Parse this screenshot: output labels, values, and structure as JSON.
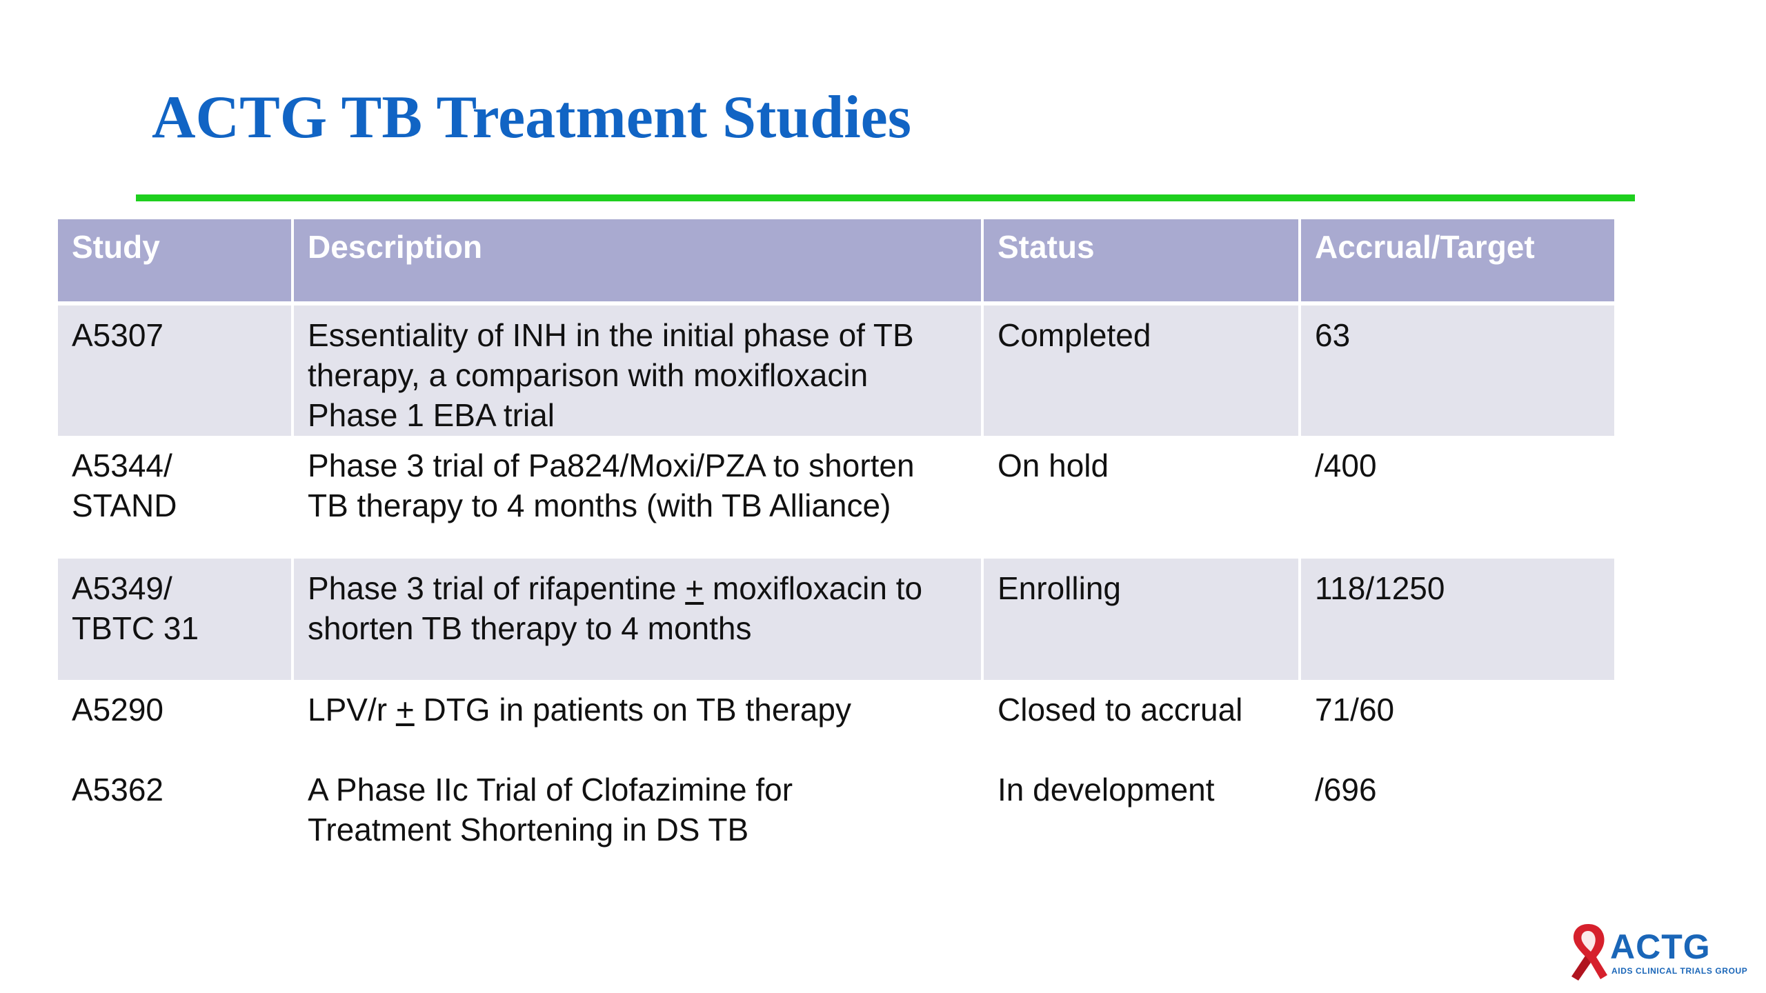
{
  "slide": {
    "title": "ACTG TB Treatment Studies"
  },
  "table": {
    "headers": {
      "study": "Study",
      "description": "Description",
      "status": "Status",
      "accrual": "Accrual/Target"
    },
    "rows": [
      {
        "study_line1": "A5307",
        "study_line2": "",
        "desc_line1": "Essentiality of INH in the initial phase of TB",
        "desc_line2": "therapy, a comparison with moxifloxacin",
        "desc_line3": "Phase 1 EBA trial",
        "status": "Completed",
        "accrual": "63"
      },
      {
        "study_line1": "A5344/",
        "study_line2": "STAND",
        "desc_line1": "Phase 3 trial of Pa824/Moxi/PZA to shorten",
        "desc_line2": "TB therapy to 4 months (with TB Alliance)",
        "status": "On hold",
        "accrual": "/400"
      },
      {
        "study_line1": "A5349/",
        "study_line2": "TBTC 31",
        "desc_line1_pre": "Phase 3 trial of rifapentine ",
        "desc_line1_sym": "+",
        "desc_line1_post": " moxifloxacin to",
        "desc_line2": "shorten TB therapy to 4 months",
        "status": "Enrolling",
        "accrual": "118/1250"
      },
      {
        "study_line1": "A5290",
        "desc_line1_pre": "LPV/r ",
        "desc_line1_sym": "+",
        "desc_line1_post": " DTG in patients on TB therapy",
        "status": "Closed to accrual",
        "accrual": "71/60"
      },
      {
        "study_line1": "A5362",
        "desc_line1": "A Phase IIc Trial of Clofazimine for",
        "desc_line2": "Treatment Shortening in DS TB",
        "status": "In development",
        "accrual": "/696"
      }
    ]
  },
  "logo": {
    "name": "ACTG",
    "tagline": "AIDS CLINICAL TRIALS GROUP",
    "colors": {
      "ribbon": "#d6202c",
      "text": "#1a66b8",
      "tagline_accent": "#d6202c"
    }
  },
  "colors": {
    "title": "#1164c4",
    "rule": "#1ecf1e",
    "header_bg": "#a9aad0",
    "row_shade": "#e3e3ec"
  }
}
